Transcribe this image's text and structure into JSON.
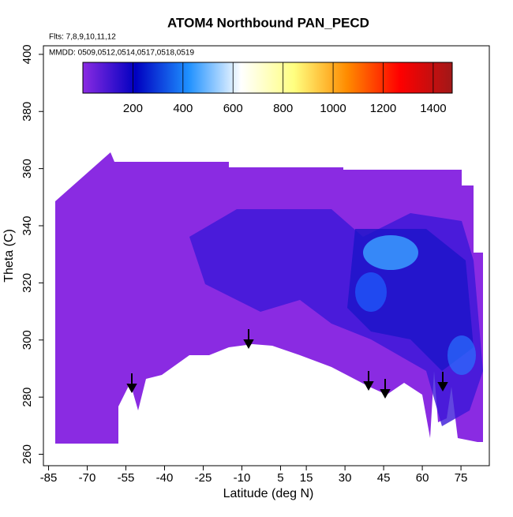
{
  "chart_data": {
    "type": "heatmap",
    "title": "ATOM4 Northbound PAN_PECD",
    "subtitle": "Flts: 7,8,9,10,11,12",
    "annotation": "MMDD: 0509,0512,0514,0517,0518,0519",
    "x_label": "Latitude (deg N)",
    "y_label": "Theta (C)",
    "xlim": [
      -87,
      86
    ],
    "xticks": [
      -85,
      -70,
      -55,
      -40,
      -25,
      -10,
      5,
      15,
      30,
      45,
      60,
      75
    ],
    "ylim": [
      256,
      403
    ],
    "yticks": [
      260,
      280,
      300,
      320,
      340,
      360,
      380,
      400
    ],
    "colorbar_lim": [
      0,
      1476
    ],
    "colorbar_ticks": [
      200,
      400,
      600,
      800,
      1000,
      1200,
      1400
    ],
    "colorscale": [
      "#8a2be2",
      "#0000c0",
      "#1e90ff",
      "#ffffff",
      "#ffff80",
      "#ff8c00",
      "#ff0000",
      "#a01818"
    ]
  }
}
